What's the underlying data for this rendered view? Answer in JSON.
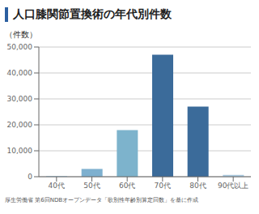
{
  "chart_data": {
    "type": "bar",
    "title": "人口膝関節置換術の年代別件数",
    "ylabel": "（件数）",
    "categories": [
      "40代",
      "50代",
      "60代",
      "70代",
      "80代",
      "90代以上"
    ],
    "values": [
      300,
      3000,
      18000,
      47000,
      27000,
      700
    ],
    "colors": [
      "#a8c8de",
      "#7eb0cf",
      "#7db3cc",
      "#3b6b9a",
      "#3b6b9a",
      "#a8c8de"
    ],
    "ylim": [
      0,
      50000
    ],
    "yticks": [
      0,
      {
        "value": 10000,
        "label": "10,000"
      },
      {
        "value": 20000,
        "label": "20,000"
      },
      {
        "value": 30000,
        "label": "30,000"
      },
      {
        "value": 40000,
        "label": "40,000"
      },
      {
        "value": 50000,
        "label": "50,000"
      }
    ],
    "grid": true,
    "annotations": [
      "厚生労働省 第6回NDBオープンデータ「歌別性年齢別算定回数」を基に作成"
    ]
  }
}
